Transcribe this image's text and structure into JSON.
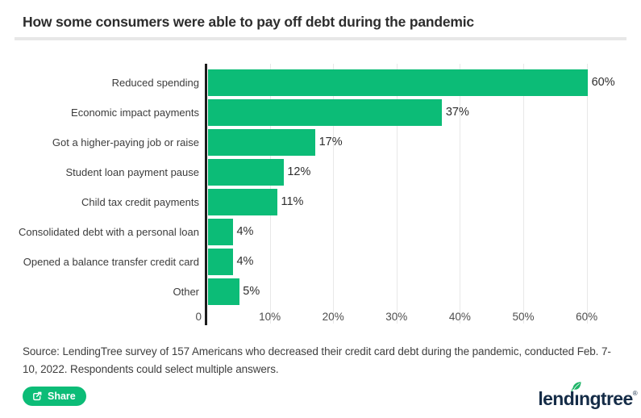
{
  "header": {
    "title": "How some consumers were able to pay off debt during the pandemic"
  },
  "chart_data": {
    "type": "bar",
    "orientation": "horizontal",
    "title": "How some consumers were able to pay off debt during the pandemic",
    "categories": [
      "Reduced spending",
      "Economic impact payments",
      "Got a higher-paying job or raise",
      "Student loan payment pause",
      "Child tax credit payments",
      "Consolidated debt with a personal loan",
      "Opened a balance transfer credit card",
      "Other"
    ],
    "values": [
      60,
      37,
      17,
      12,
      11,
      4,
      4,
      5
    ],
    "value_labels": [
      "60%",
      "37%",
      "17%",
      "12%",
      "11%",
      "4%",
      "4%",
      "5%"
    ],
    "x_ticks": [
      "0",
      "10%",
      "20%",
      "30%",
      "40%",
      "50%",
      "60%"
    ],
    "x_tick_values": [
      0,
      10,
      20,
      30,
      40,
      50,
      60
    ],
    "xlim": [
      0,
      68
    ],
    "grid": true,
    "legend": "none",
    "bar_color": "#0cbc77"
  },
  "source": {
    "text": "Source: LendingTree survey of 157 Americans who decreased their credit card debt during the pandemic, conducted Feb. 7-10, 2022. Respondents could select multiple answers."
  },
  "footer": {
    "share_label": "Share",
    "logo": {
      "before_i": "lend",
      "dotless_i": "ı",
      "after_i": "ngtree",
      "trademark": "®"
    }
  },
  "colors": {
    "accent_green": "#0cbc77",
    "leaf_green": "#1fb568",
    "logo_navy": "#152c47",
    "axis_black": "#1c1c1c",
    "grid_gray": "#e8e8e8",
    "divider_gray": "#e7e7e7",
    "text_dark": "#2d2d2d"
  }
}
